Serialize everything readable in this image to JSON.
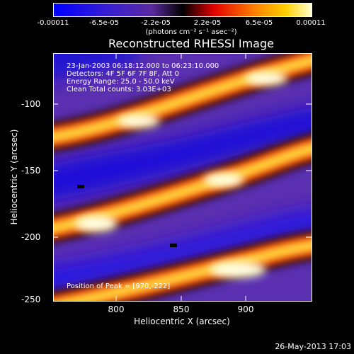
{
  "colorbar": {
    "ticks": [
      "-0.00011",
      "-6.5e-05",
      "-2.2e-05",
      "2.2e-05",
      "6.5e-05",
      "0.00011"
    ],
    "units": "(photons cm⁻² s⁻¹ asec⁻²)"
  },
  "plot": {
    "title": "Reconstructed RHESSI Image",
    "info": [
      "23-Jan-2003 06:18:12.000 to 06:23:10.000",
      "Detectors: 4F 5F 6F 7F 8F, Att 0",
      "Energy Range: 25.0 - 50.0 keV",
      "Clean     Total counts: 3.03E+03"
    ],
    "peak": "Position of Peak = [970,-222]"
  },
  "axes": {
    "xlabel": "Heliocentric X (arcsec)",
    "ylabel": "Heliocentric Y (arcsec)",
    "xticks": [
      "800",
      "850",
      "900"
    ],
    "yticks": [
      "-100",
      "-150",
      "-200",
      "-250"
    ]
  },
  "footer": "26-May-2013 17:03"
}
